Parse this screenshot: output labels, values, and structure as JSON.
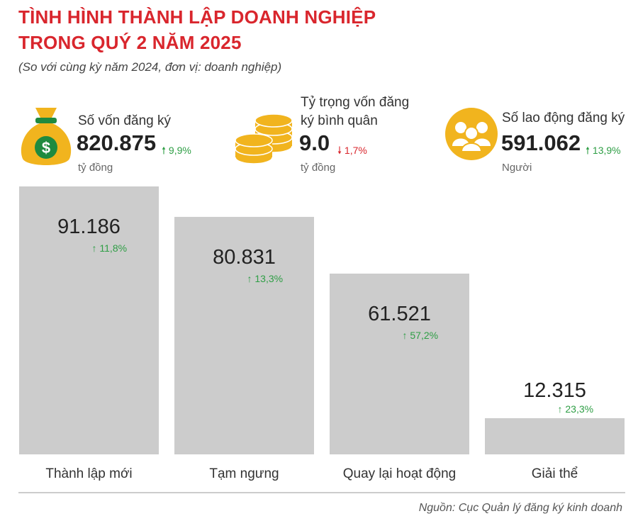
{
  "header": {
    "title_line1": "TÌNH HÌNH THÀNH LẬP DOANH NGHIỆP",
    "title_line2": "TRONG QUÝ 2 NĂM 2025",
    "subtitle": "(So với cùng kỳ năm 2024, đơn vị: doanh nghiệp)"
  },
  "kpis": [
    {
      "label": "Số vốn đăng ký",
      "value": "820.875",
      "change": "9,9%",
      "direction": "up",
      "unit": "tỷ đồng",
      "icon": "money-bag-icon"
    },
    {
      "label_line1": "Tỷ trọng vốn đăng",
      "label_line2": "ký bình quân",
      "value": "9.0",
      "change": "1,7%",
      "direction": "down",
      "unit": "tỷ đồng",
      "icon": "coins-icon"
    },
    {
      "label": "Số lao động đăng ký",
      "value": "591.062",
      "change": "13,9%",
      "direction": "up",
      "unit": "Người",
      "icon": "people-icon"
    }
  ],
  "colors": {
    "title": "#d9262d",
    "bar": "#cccccc",
    "up": "#2e9e45",
    "down": "#d9262d",
    "gold": "#f1b41e"
  },
  "chart_data": {
    "type": "bar",
    "categories": [
      "Thành lập mới",
      "Tạm ngưng",
      "Quay lại hoạt động",
      "Giải thể"
    ],
    "values": [
      91186,
      80831,
      61521,
      12315
    ],
    "value_labels": [
      "91.186",
      "80.831",
      "61.521",
      "12.315"
    ],
    "changes": [
      "11,8%",
      "13,3%",
      "57,2%",
      "23,3%"
    ],
    "change_direction": [
      "up",
      "up",
      "up",
      "up"
    ],
    "ylim": [
      0,
      91186
    ],
    "grid": false
  },
  "footer": {
    "source": "Nguồn: Cục Quản lý đăng ký kinh doanh"
  }
}
